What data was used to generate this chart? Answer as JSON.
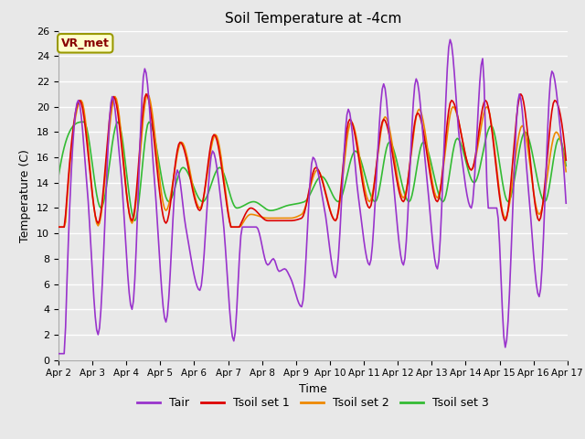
{
  "title": "Soil Temperature at -4cm",
  "xlabel": "Time",
  "ylabel": "Temperature (C)",
  "ylim": [
    0,
    26
  ],
  "yticks": [
    0,
    2,
    4,
    6,
    8,
    10,
    12,
    14,
    16,
    18,
    20,
    22,
    24,
    26
  ],
  "fig_bg_color": "#e8e8e8",
  "plot_bg_color": "#e8e8e8",
  "grid_color": "#ffffff",
  "annotation_text": "VR_met",
  "annotation_bg": "#ffffcc",
  "annotation_border": "#999900",
  "annotation_text_color": "#880000",
  "colors": {
    "Tair": "#9933cc",
    "Tsoil1": "#dd0000",
    "Tsoil2": "#ee8800",
    "Tsoil3": "#33bb33"
  },
  "legend_labels": [
    "Tair",
    "Tsoil set 1",
    "Tsoil set 2",
    "Tsoil set 3"
  ],
  "n_days": 15,
  "n_ppd": 24
}
